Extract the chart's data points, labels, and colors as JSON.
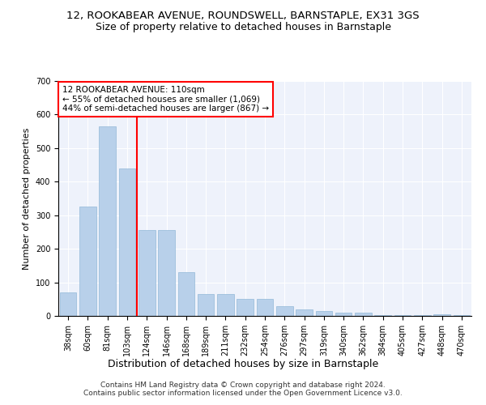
{
  "title1": "12, ROOKABEAR AVENUE, ROUNDSWELL, BARNSTAPLE, EX31 3GS",
  "title2": "Size of property relative to detached houses in Barnstaple",
  "xlabel": "Distribution of detached houses by size in Barnstaple",
  "ylabel": "Number of detached properties",
  "bar_color": "#b8d0ea",
  "bar_edge_color": "#92b8d8",
  "background_color": "#eef2fb",
  "grid_color": "#ffffff",
  "categories": [
    "38sqm",
    "60sqm",
    "81sqm",
    "103sqm",
    "124sqm",
    "146sqm",
    "168sqm",
    "189sqm",
    "211sqm",
    "232sqm",
    "254sqm",
    "276sqm",
    "297sqm",
    "319sqm",
    "340sqm",
    "362sqm",
    "384sqm",
    "405sqm",
    "427sqm",
    "448sqm",
    "470sqm"
  ],
  "values": [
    70,
    325,
    565,
    440,
    255,
    255,
    130,
    65,
    65,
    50,
    50,
    30,
    20,
    15,
    10,
    10,
    2,
    2,
    2,
    5,
    2
  ],
  "ylim": [
    0,
    700
  ],
  "yticks": [
    0,
    100,
    200,
    300,
    400,
    500,
    600,
    700
  ],
  "property_line_x": 3.5,
  "annotation_text": "12 ROOKABEAR AVENUE: 110sqm\n← 55% of detached houses are smaller (1,069)\n44% of semi-detached houses are larger (867) →",
  "annotation_box_color": "white",
  "annotation_box_edge_color": "red",
  "red_line_color": "red",
  "footer_text": "Contains HM Land Registry data © Crown copyright and database right 2024.\nContains public sector information licensed under the Open Government Licence v3.0.",
  "title1_fontsize": 9.5,
  "title2_fontsize": 9,
  "xlabel_fontsize": 9,
  "ylabel_fontsize": 8,
  "tick_fontsize": 7,
  "annotation_fontsize": 7.5,
  "footer_fontsize": 6.5
}
